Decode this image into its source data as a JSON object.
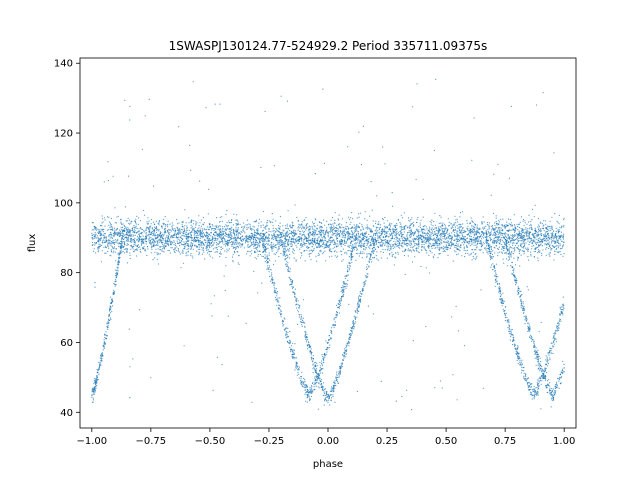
{
  "chart_data": {
    "type": "scatter",
    "title": "1SWASPJ130124.77-524929.2 Period 335711.09375s",
    "xlabel": "phase",
    "ylabel": "flux",
    "xlim": [
      -1.05,
      1.05
    ],
    "ylim": [
      35.5,
      141.5
    ],
    "xticks": [
      -1.0,
      -0.75,
      -0.5,
      -0.25,
      0.0,
      0.25,
      0.5,
      0.75,
      1.0
    ],
    "xtick_labels": [
      "−1.00",
      "−0.75",
      "−0.50",
      "−0.25",
      "0.00",
      "0.25",
      "0.50",
      "0.75",
      "1.00"
    ],
    "yticks": [
      40,
      60,
      80,
      100,
      120,
      140
    ],
    "ytick_labels": [
      "40",
      "60",
      "80",
      "100",
      "120",
      "140"
    ],
    "grid": false,
    "legend": "none",
    "color": "#1f77b4",
    "baseline_flux": 90,
    "baseline_scatter": 2.5,
    "eclipses": [
      {
        "center_phase": -1.0,
        "min_flux": 45,
        "half_width": 0.13
      },
      {
        "center_phase": -0.08,
        "min_flux": 45,
        "half_width": 0.2
      },
      {
        "center_phase": 0.0,
        "min_flux": 44,
        "half_width": 0.2
      },
      {
        "center_phase": 0.87,
        "min_flux": 45,
        "half_width": 0.2
      },
      {
        "center_phase": 0.95,
        "min_flux": 45,
        "half_width": 0.2
      }
    ],
    "outlier_range": [
      40,
      136
    ]
  }
}
